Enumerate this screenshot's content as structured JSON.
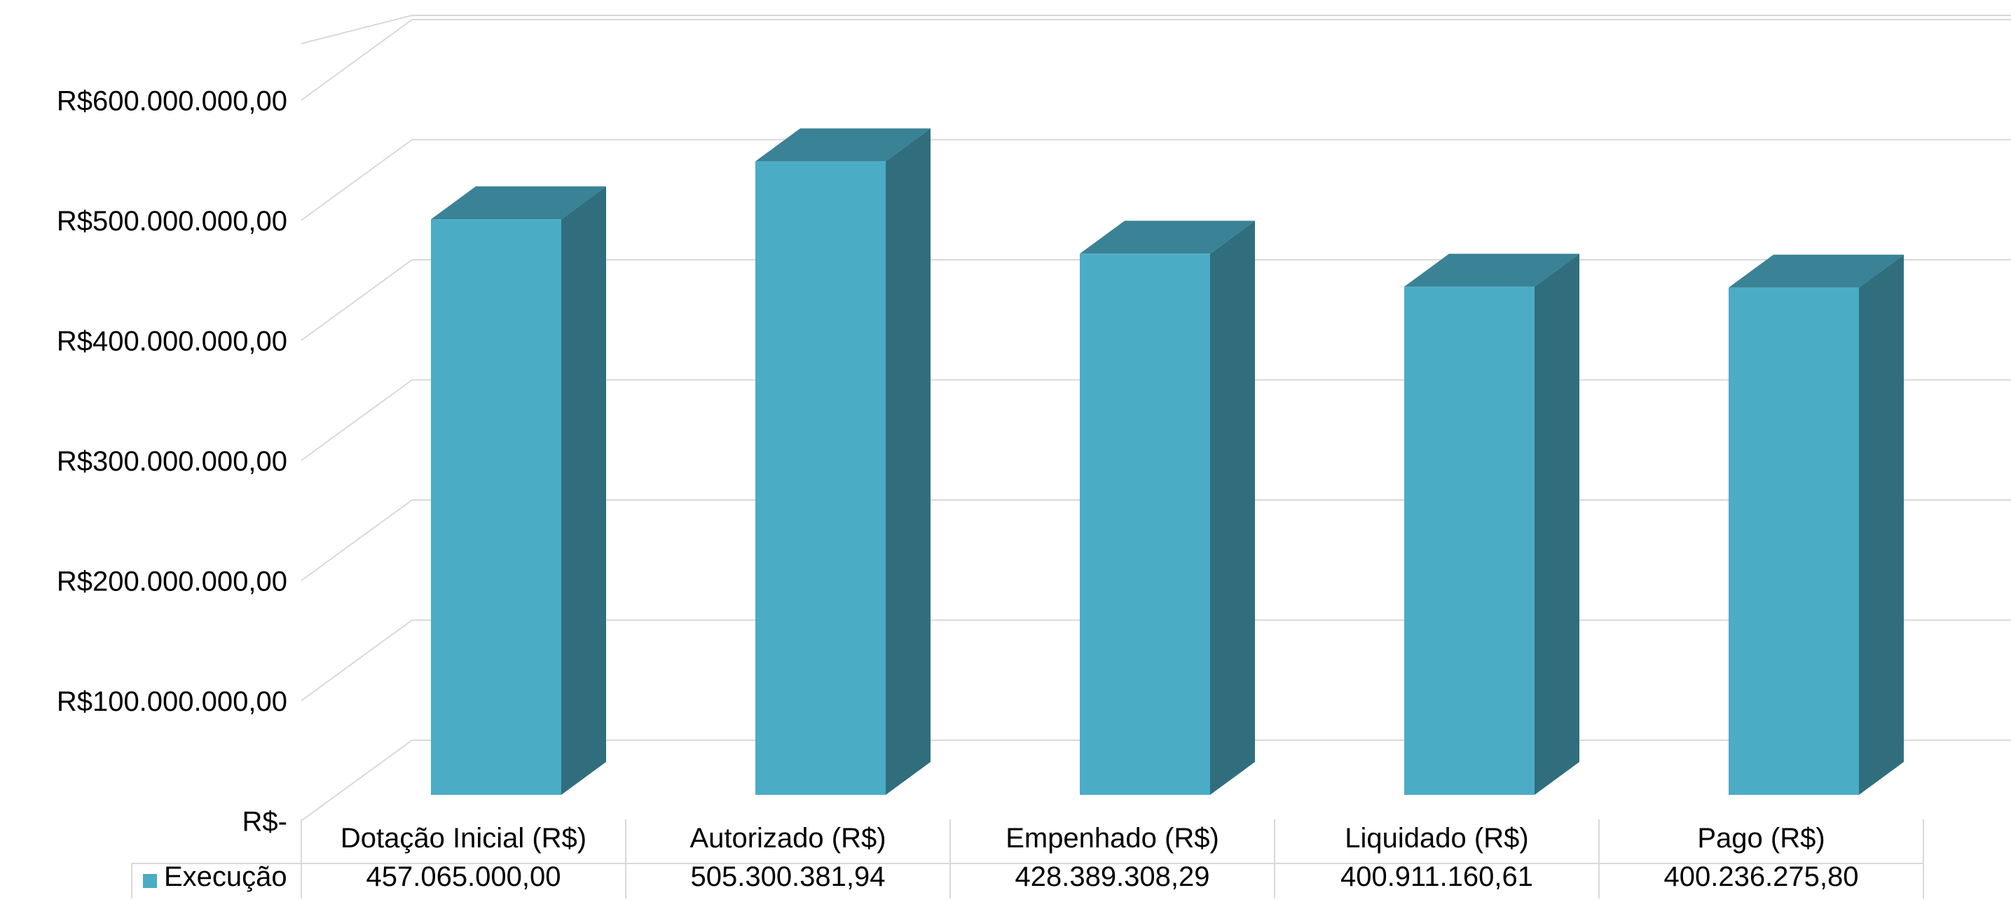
{
  "chart_data": {
    "type": "bar",
    "style": "3d-column",
    "categories": [
      "Dotação Inicial (R$)",
      "Autorizado (R$)",
      "Empenhado (R$)",
      "Liquidado (R$)",
      "Pago (R$)"
    ],
    "series": [
      {
        "name": "Execução",
        "values": [
          457065000.0,
          505300381.94,
          428389308.29,
          400911160.61,
          400236275.8
        ],
        "value_labels": [
          "457.065.000,00",
          "505.300.381,94",
          "428.389.308,29",
          "400.911.160,61",
          "400.236.275,80"
        ]
      }
    ],
    "yticks": [
      0,
      100000000,
      200000000,
      300000000,
      400000000,
      500000000,
      600000000
    ],
    "ytick_labels": [
      "R$-",
      "R$100.000.000,00",
      "R$200.000.000,00",
      "R$300.000.000,00",
      "R$400.000.000,00",
      "R$500.000.000,00",
      "R$600.000.000,00"
    ],
    "ylim": [
      0,
      650000000
    ],
    "grid": true,
    "legend": "data-table",
    "colors": {
      "front": "#4BACC6",
      "top": "#3A8296",
      "side": "#306E7E",
      "grid": "#D9D9D9",
      "table_border": "#D9D9D9"
    }
  }
}
